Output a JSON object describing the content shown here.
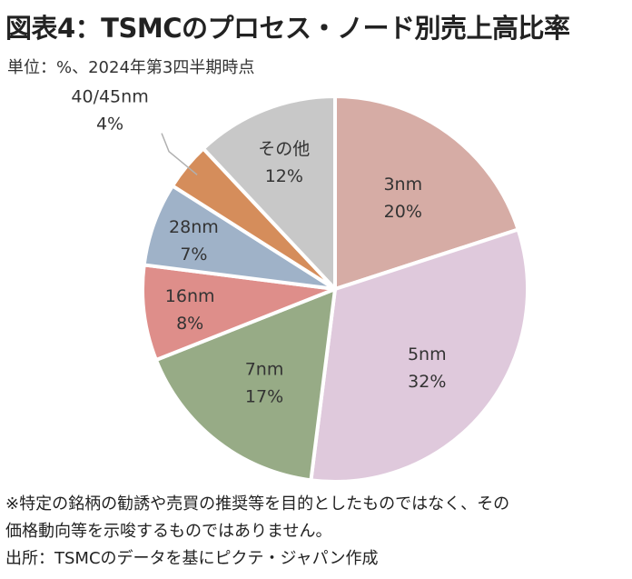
{
  "chart_data": {
    "type": "pie",
    "title": "図表4：TSMCのプロセス・ノード別売上高比率",
    "subtitle": "単位：%、2024年第3四半期時点",
    "start": "12 o'clock",
    "direction": "clockwise",
    "slices": [
      {
        "name": "3nm",
        "value": 20,
        "value_label": "20%",
        "color": "#d6aca5"
      },
      {
        "name": "5nm",
        "value": 32,
        "value_label": "32%",
        "color": "#dfc9dc"
      },
      {
        "name": "7nm",
        "value": 17,
        "value_label": "17%",
        "color": "#97ab86"
      },
      {
        "name": "16nm",
        "value": 8,
        "value_label": "8%",
        "color": "#de8e8a"
      },
      {
        "name": "28nm",
        "value": 7,
        "value_label": "7%",
        "color": "#9fb2c8"
      },
      {
        "name": "40/45nm",
        "value": 4,
        "value_label": "4%",
        "color": "#d58d5b"
      },
      {
        "name": "その他",
        "value": 12,
        "value_label": "12%",
        "color": "#c8c8c8"
      }
    ]
  },
  "notes": {
    "line1": "※特定の銘柄の勧誘や売買の推奨等を目的としたものではなく、その",
    "line2": "価格動向等を示唆するものではありません。",
    "source": "出所：TSMCのデータを基にピクテ・ジャパン作成"
  }
}
